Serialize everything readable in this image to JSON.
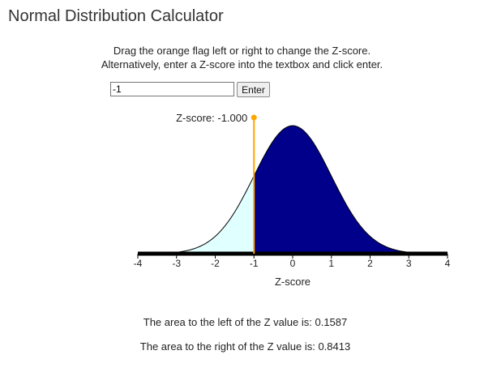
{
  "title": "Normal Distribution Calculator",
  "instructions": {
    "line1": "Drag the orange flag left or right to change the Z-score.",
    "line2": "Alternatively, enter a Z-score into the textbox and click enter."
  },
  "input": {
    "value": "-1",
    "button_label": "Enter"
  },
  "flag": {
    "label": "Z-score: -1.000",
    "z": -1.0
  },
  "colors": {
    "left_area": "#e0ffff",
    "right_area": "#00008b",
    "flag": "#ffa500",
    "axis": "#000000"
  },
  "chart_data": {
    "type": "area",
    "distribution": "standard normal",
    "xlim": [
      -4,
      4
    ],
    "ticks": [
      "-4",
      "-3",
      "-2",
      "-1",
      "0",
      "1",
      "2",
      "3",
      "4"
    ],
    "xlabel": "Z-score",
    "z": -1.0
  },
  "results": {
    "left_text": "The area to the left of the Z value is: 0.1587",
    "right_text": "The area to the right of the Z value is: 0.8413"
  }
}
